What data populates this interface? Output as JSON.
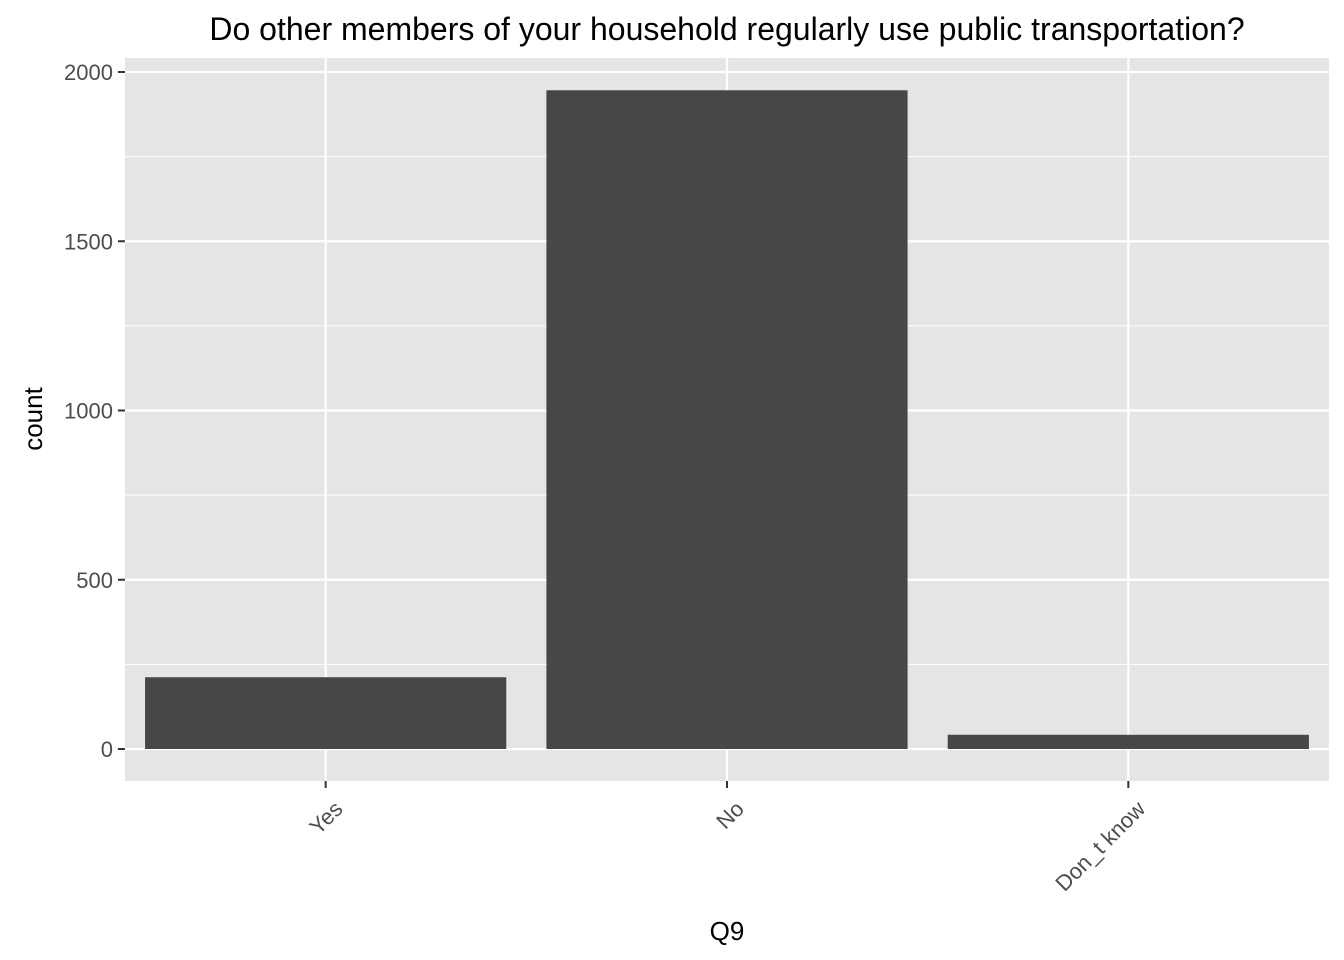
{
  "chart_data": {
    "type": "bar",
    "title": "Do other members of your household regularly use public transportation?",
    "xlabel": "Q9",
    "ylabel": "count",
    "categories": [
      "Yes",
      "No",
      "Don_t know"
    ],
    "values": [
      212,
      1946,
      42
    ],
    "ylim": [
      0,
      2000
    ],
    "yticks": [
      0,
      500,
      1000,
      1500,
      2000
    ],
    "ytick_labels": [
      "0",
      "500",
      "1000",
      "1500",
      "2000"
    ],
    "grid": true,
    "legend": "none",
    "colors": {
      "bar": "#474747",
      "panel": "#e5e5e5",
      "grid": "#ffffff",
      "tick": "#333333"
    }
  }
}
